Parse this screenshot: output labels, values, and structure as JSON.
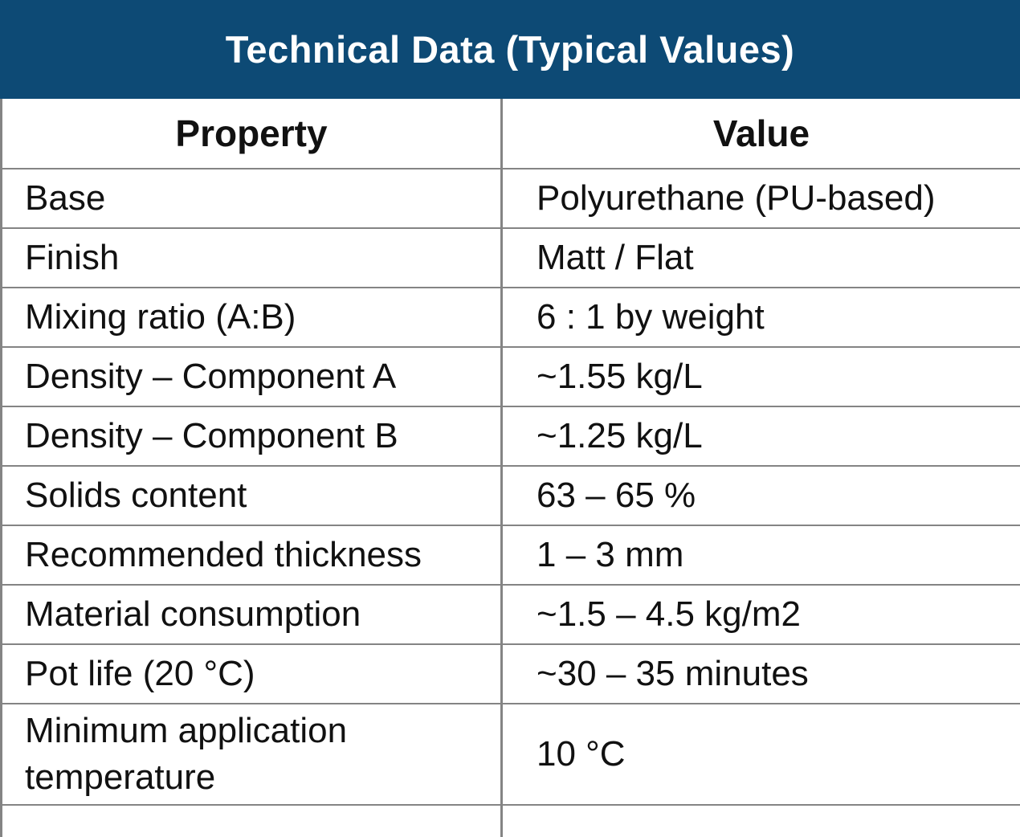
{
  "title": "Technical Data (Typical Values)",
  "colors": {
    "header_bg": "#0d4a75",
    "header_text": "#ffffff",
    "border": "#848484",
    "body_text": "#111111"
  },
  "table": {
    "columns": [
      "Property",
      "Value"
    ],
    "rows": [
      {
        "property": "Base",
        "value": "Polyurethane (PU-based)"
      },
      {
        "property": "Finish",
        "value": "Matt / Flat"
      },
      {
        "property": "Mixing ratio (A:B)",
        "value": "6 : 1 by weight"
      },
      {
        "property": "Density – Component A",
        "value": "~1.55 kg/L"
      },
      {
        "property": "Density – Component B",
        "value": "~1.25 kg/L"
      },
      {
        "property": "Solids content",
        "value": "63 – 65 %"
      },
      {
        "property": "Recommended thickness",
        "value": "1 – 3 mm"
      },
      {
        "property": "Material consumption",
        "value": "~1.5 – 4.5 kg/m2"
      },
      {
        "property": "Pot life (20 °C)",
        "value": "~30 – 35 minutes"
      },
      {
        "property": "Minimum application temperature",
        "value": "10 °C"
      }
    ]
  }
}
